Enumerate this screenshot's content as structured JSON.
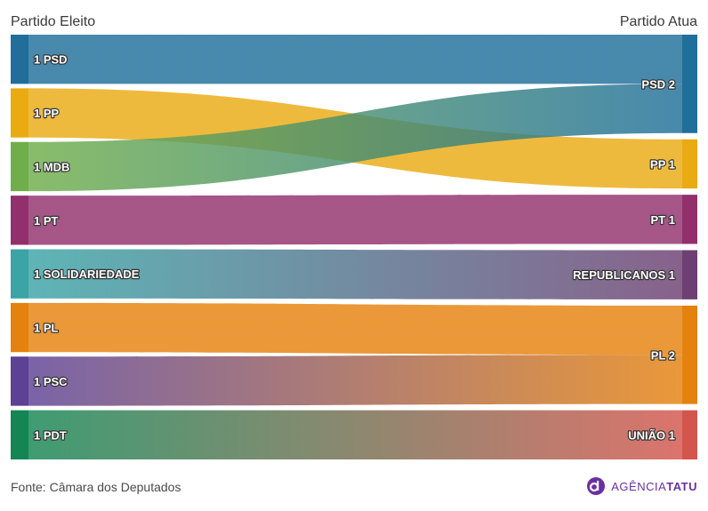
{
  "header": {
    "left_title": "Partido Eleito",
    "right_title": "Partido Atua"
  },
  "footer": {
    "source": "Fonte: Câmara dos Deputados",
    "logo_prefix": "AGÊNCIA",
    "logo_suffix": "TATU"
  },
  "chart_data": {
    "type": "sankey",
    "left_axis_title": "Partido Eleito",
    "right_axis_title": "Partido Atua",
    "sources": [
      {
        "name": "PSD",
        "value": 1,
        "label": "1 PSD",
        "color": "#1f6f9a"
      },
      {
        "name": "PP",
        "value": 1,
        "label": "1 PP",
        "color": "#eaab12"
      },
      {
        "name": "MDB",
        "value": 1,
        "label": "1 MDB",
        "color": "#6fae49"
      },
      {
        "name": "PT",
        "value": 1,
        "label": "1 PT",
        "color": "#92306d"
      },
      {
        "name": "SOLIDARIEDADE",
        "value": 1,
        "label": "1 SOLIDARIEDADE",
        "color": "#3aa4a6"
      },
      {
        "name": "PL",
        "value": 1,
        "label": "1 PL",
        "color": "#e5820d"
      },
      {
        "name": "PSC",
        "value": 1,
        "label": "1 PSC",
        "color": "#5c4195"
      },
      {
        "name": "PDT",
        "value": 1,
        "label": "1 PDT",
        "color": "#148654"
      }
    ],
    "targets": [
      {
        "name": "PSD",
        "value": 2,
        "label": "PSD 2",
        "color": "#1f6f9a"
      },
      {
        "name": "PP",
        "value": 1,
        "label": "PP 1",
        "color": "#eaab12"
      },
      {
        "name": "PT",
        "value": 1,
        "label": "PT 1",
        "color": "#92306d"
      },
      {
        "name": "REPUBLICANOS",
        "value": 1,
        "label": "REPUBLICANOS 1",
        "color": "#6d3f72"
      },
      {
        "name": "PL",
        "value": 2,
        "label": "PL 2",
        "color": "#e5820d"
      },
      {
        "name": "UNIÃO",
        "value": 1,
        "label": "UNIÃO 1",
        "color": "#d4554c"
      }
    ],
    "links": [
      {
        "source": "PSD",
        "target": "PSD",
        "value": 1
      },
      {
        "source": "PP",
        "target": "PP",
        "value": 1
      },
      {
        "source": "MDB",
        "target": "PSD",
        "value": 1
      },
      {
        "source": "PT",
        "target": "PT",
        "value": 1
      },
      {
        "source": "SOLIDARIEDADE",
        "target": "REPUBLICANOS",
        "value": 1
      },
      {
        "source": "PL",
        "target": "PL",
        "value": 1
      },
      {
        "source": "PSC",
        "target": "PL",
        "value": 1
      },
      {
        "source": "PDT",
        "target": "UNIÃO",
        "value": 1
      }
    ]
  }
}
